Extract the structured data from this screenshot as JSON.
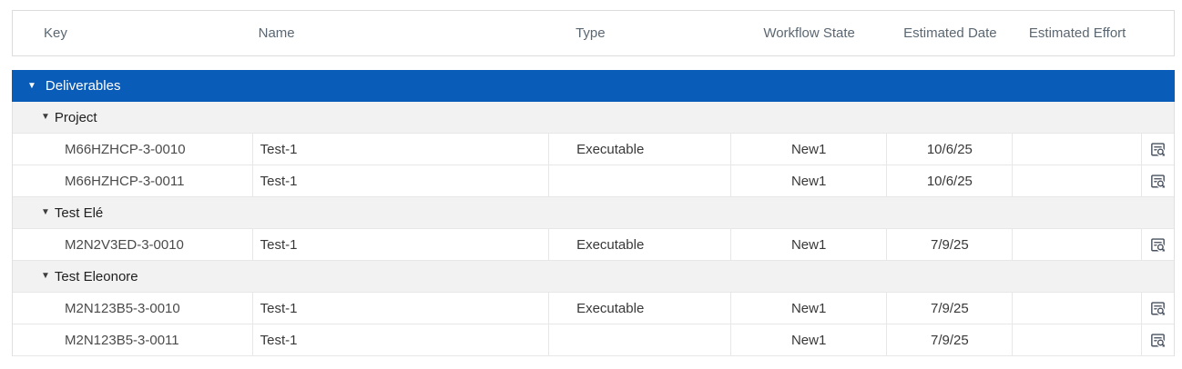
{
  "table": {
    "columns": [
      {
        "label": "Key"
      },
      {
        "label": "Name"
      },
      {
        "label": "Type"
      },
      {
        "label": "Workflow State"
      },
      {
        "label": "Estimated Date"
      },
      {
        "label": "Estimated Effort"
      },
      {
        "label": ""
      }
    ],
    "root_group": {
      "label": "Deliverables",
      "collapse_icon": "triangle-down-icon"
    },
    "groups": [
      {
        "label": "Project",
        "rows": [
          {
            "key": "M66HZHCP-3-0010",
            "name": "Test-1",
            "type": "Executable",
            "workflow_state": "New1",
            "estimated_date": "10/6/25",
            "estimated_effort": ""
          },
          {
            "key": "M66HZHCP-3-0011",
            "name": "Test-1",
            "type": "",
            "workflow_state": "New1",
            "estimated_date": "10/6/25",
            "estimated_effort": ""
          }
        ]
      },
      {
        "label": "Test Elé",
        "rows": [
          {
            "key": "M2N2V3ED-3-0010",
            "name": "Test-1",
            "type": "Executable",
            "workflow_state": "New1",
            "estimated_date": "7/9/25",
            "estimated_effort": ""
          }
        ]
      },
      {
        "label": "Test Eleonore",
        "rows": [
          {
            "key": "M2N123B5-3-0010",
            "name": "Test-1",
            "type": "Executable",
            "workflow_state": "New1",
            "estimated_date": "7/9/25",
            "estimated_effort": ""
          },
          {
            "key": "M2N123B5-3-0011",
            "name": "Test-1",
            "type": "",
            "workflow_state": "New1",
            "estimated_date": "7/9/25",
            "estimated_effort": ""
          }
        ]
      }
    ],
    "row_action_icon": "document-search-icon",
    "colors": {
      "group_bar_bg": "#0a5cb9",
      "group_bar_text": "#ffffff",
      "group_row_bg": "#f2f2f2",
      "header_text": "#5a6772",
      "cell_text": "#383838",
      "border": "#e7e7e7",
      "icon": "#47505e"
    }
  }
}
